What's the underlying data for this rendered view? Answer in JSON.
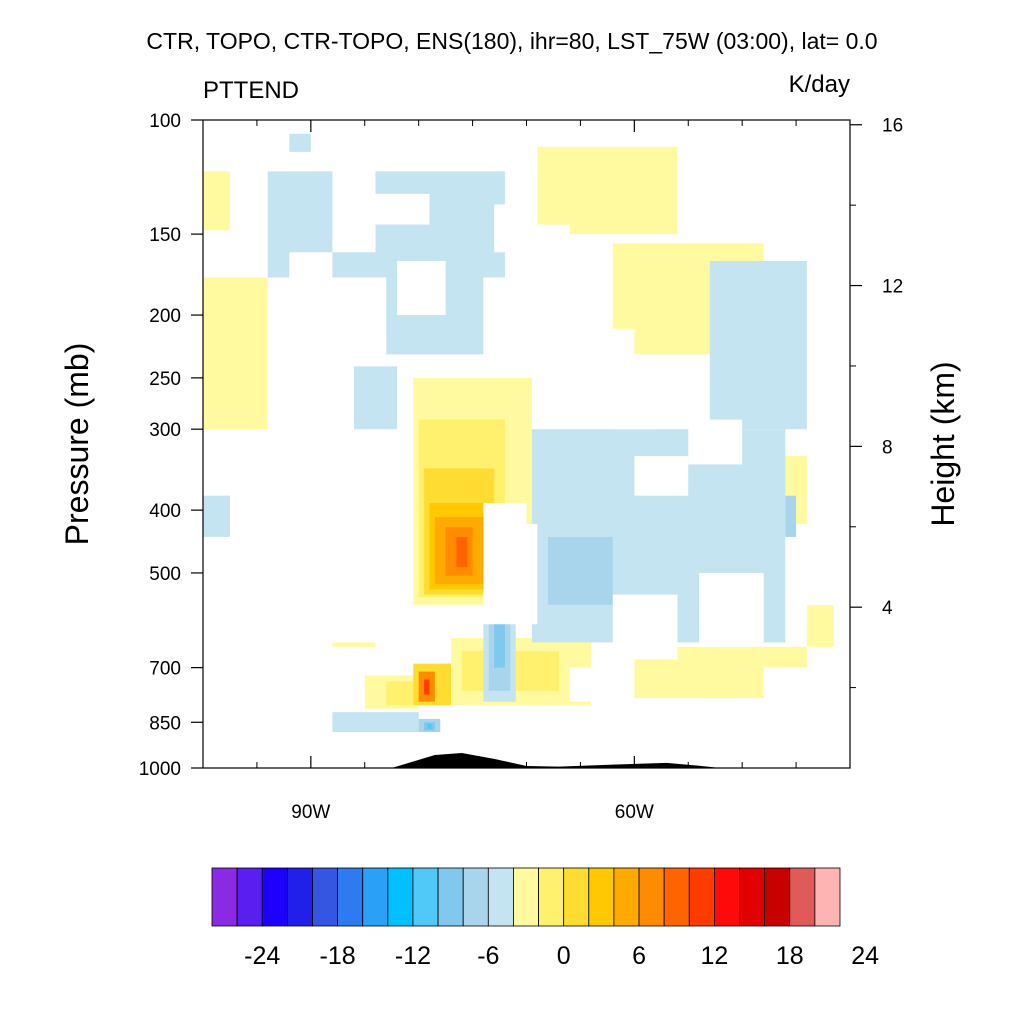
{
  "chart_data": {
    "type": "heatmap",
    "title": "CTR, TOPO, CTR-TOPO, ENS(180), ihr=80, LST_75W (03:00), lat=  0.0",
    "subtitle_left": "PTTEND",
    "units": "K/day",
    "xlabel": "",
    "ylabel": "Pressure (mb)",
    "ylabel_right": "Height (km)",
    "x_range": [
      -100,
      -40
    ],
    "x_ticks": [
      {
        "value": -90,
        "label": "90W"
      },
      {
        "value": -60,
        "label": "60W"
      }
    ],
    "y_range": [
      100,
      1000
    ],
    "y_scale": "log",
    "y_ticks": [
      {
        "value": 100,
        "label": "100"
      },
      {
        "value": 150,
        "label": "150"
      },
      {
        "value": 200,
        "label": "200"
      },
      {
        "value": 250,
        "label": "250"
      },
      {
        "value": 300,
        "label": "300"
      },
      {
        "value": 400,
        "label": "400"
      },
      {
        "value": 500,
        "label": "500"
      },
      {
        "value": 700,
        "label": "700"
      },
      {
        "value": 850,
        "label": "850"
      },
      {
        "value": 1000,
        "label": "1000"
      }
    ],
    "y_right_ticks": [
      {
        "km": 16,
        "label": "16"
      },
      {
        "km": 12,
        "label": "12"
      },
      {
        "km": 8,
        "label": "8"
      },
      {
        "km": 4,
        "label": "4"
      }
    ],
    "colorbar": {
      "colors": [
        "#8a2be2",
        "#5a1ef0",
        "#1e00ff",
        "#2020e8",
        "#3456e0",
        "#2e7af0",
        "#2aa0f6",
        "#00c0ff",
        "#50c8f8",
        "#80c8ee",
        "#a8d4ec",
        "#c4e4f2",
        "#fffaa0",
        "#fff06e",
        "#ffdc32",
        "#ffc800",
        "#ffaa00",
        "#ff8c00",
        "#ff6400",
        "#ff3c00",
        "#ff0a0a",
        "#e10000",
        "#c80000",
        "#e05a5a",
        "#ffb4b4"
      ],
      "tick_labels": [
        "-24",
        "-18",
        "-12",
        "-6",
        "0",
        "6",
        "12",
        "18",
        "24"
      ]
    },
    "topography": [
      {
        "lon": -82.5,
        "p": 1000
      },
      {
        "lon": -78.5,
        "p": 955
      },
      {
        "lon": -76,
        "p": 948
      },
      {
        "lon": -73,
        "p": 968
      },
      {
        "lon": -70,
        "p": 993
      },
      {
        "lon": -67,
        "p": 995
      },
      {
        "lon": -62,
        "p": 988
      },
      {
        "lon": -57,
        "p": 982
      },
      {
        "lon": -54,
        "p": 992
      },
      {
        "lon": -52,
        "p": 1000
      }
    ],
    "regions": [
      {
        "kind": "pos",
        "level": 0,
        "lon": [
          -100,
          -97.5
        ],
        "p": [
          120,
          148
        ]
      },
      {
        "kind": "pos",
        "level": 0,
        "lon": [
          -100,
          -94
        ],
        "p": [
          175,
          300
        ]
      },
      {
        "kind": "pos",
        "level": 0,
        "lon": [
          -83,
          -77.5
        ],
        "p": [
          142,
          168
        ]
      },
      {
        "kind": "pos",
        "level": 0,
        "lon": [
          -80.5,
          -69.5
        ],
        "p": [
          250,
          560
        ]
      },
      {
        "kind": "pos",
        "level": 0,
        "lon": [
          -77,
          -64
        ],
        "p": [
          630,
          800
        ]
      },
      {
        "kind": "pos",
        "level": 0,
        "lon": [
          -85,
          -80
        ],
        "p": [
          720,
          810
        ]
      },
      {
        "kind": "pos",
        "level": 0,
        "lon": [
          -69,
          -56
        ],
        "p": [
          110,
          150
        ]
      },
      {
        "kind": "pos",
        "level": 0,
        "lon": [
          -62,
          -48
        ],
        "p": [
          155,
          230
        ]
      },
      {
        "kind": "pos",
        "level": 0,
        "lon": [
          -52,
          -44
        ],
        "p": [
          330,
          420
        ]
      },
      {
        "kind": "pos",
        "level": 0,
        "lon": [
          -92,
          -84
        ],
        "p": [
          580,
          650
        ]
      },
      {
        "kind": "pos",
        "level": 0,
        "lon": [
          -60,
          -44
        ],
        "p": [
          650,
          780
        ]
      },
      {
        "kind": "pos",
        "level": 0,
        "lon": [
          -44,
          -41.5
        ],
        "p": [
          560,
          650
        ]
      },
      {
        "kind": "pos",
        "level": 0,
        "lon": [
          -48,
          -45
        ],
        "p": [
          245,
          285
        ]
      },
      {
        "kind": "pos",
        "level": 1,
        "lon": [
          -80,
          -72
        ],
        "p": [
          290,
          545
        ]
      },
      {
        "kind": "pos",
        "level": 1,
        "lon": [
          -76,
          -67
        ],
        "p": [
          660,
          760
        ]
      },
      {
        "kind": "pos",
        "level": 1,
        "lon": [
          -83,
          -79
        ],
        "p": [
          735,
          800
        ]
      },
      {
        "kind": "pos",
        "level": 2,
        "lon": [
          -79.5,
          -73
        ],
        "p": [
          345,
          540
        ]
      },
      {
        "kind": "pos",
        "level": 2,
        "lon": [
          -80.5,
          -77
        ],
        "p": [
          690,
          800
        ]
      },
      {
        "kind": "pos",
        "level": 3,
        "lon": [
          -79,
          -73.5
        ],
        "p": [
          390,
          530
        ]
      },
      {
        "kind": "pos",
        "level": 4,
        "lon": [
          -78.5,
          -74
        ],
        "p": [
          410,
          520
        ]
      },
      {
        "kind": "pos",
        "level": 5,
        "lon": [
          -77.5,
          -75
        ],
        "p": [
          425,
          505
        ]
      },
      {
        "kind": "pos",
        "level": 6,
        "lon": [
          -76.5,
          -75.5
        ],
        "p": [
          440,
          490
        ]
      },
      {
        "kind": "pos",
        "level": 5,
        "lon": [
          -80,
          -78.5
        ],
        "p": [
          710,
          790
        ]
      },
      {
        "kind": "pos",
        "level": 7,
        "lon": [
          -79.5,
          -79
        ],
        "p": [
          730,
          770
        ]
      },
      {
        "kind": "neg",
        "level": 0,
        "lon": [
          -94,
          -72
        ],
        "p": [
          120,
          175
        ]
      },
      {
        "kind": "neg",
        "level": 0,
        "lon": [
          -69.5,
          -46
        ],
        "p": [
          300,
          640
        ]
      },
      {
        "kind": "neg",
        "level": 0,
        "lon": [
          -83,
          -74
        ],
        "p": [
          168,
          230
        ]
      },
      {
        "kind": "neg",
        "level": 0,
        "lon": [
          -53,
          -44
        ],
        "p": [
          165,
          300
        ]
      },
      {
        "kind": "neg",
        "level": 0,
        "lon": [
          -86,
          -82
        ],
        "p": [
          240,
          330
        ]
      },
      {
        "kind": "neg",
        "level": 0,
        "lon": [
          -88,
          -80
        ],
        "p": [
          820,
          880
        ]
      },
      {
        "kind": "neg",
        "level": 0,
        "lon": [
          -74,
          -71
        ],
        "p": [
          560,
          790
        ]
      },
      {
        "kind": "neg",
        "level": 0,
        "lon": [
          -100,
          -97.5
        ],
        "p": [
          380,
          440
        ]
      },
      {
        "kind": "neg",
        "level": 0,
        "lon": [
          -92,
          -90
        ],
        "p": [
          105,
          112
        ]
      },
      {
        "kind": "neg",
        "level": 1,
        "lon": [
          -68,
          -62
        ],
        "p": [
          440,
          560
        ]
      },
      {
        "kind": "neg",
        "level": 1,
        "lon": [
          -73.5,
          -71.5
        ],
        "p": [
          570,
          760
        ]
      },
      {
        "kind": "neg",
        "level": 1,
        "lon": [
          -80,
          -78
        ],
        "p": [
          840,
          880
        ]
      },
      {
        "kind": "neg",
        "level": 1,
        "lon": [
          -46,
          -45
        ],
        "p": [
          380,
          440
        ]
      },
      {
        "kind": "neg",
        "level": 2,
        "lon": [
          -73,
          -72
        ],
        "p": [
          590,
          700
        ]
      },
      {
        "kind": "neg",
        "level": 2,
        "lon": [
          -79.5,
          -78.5
        ],
        "p": [
          850,
          875
        ]
      },
      {
        "kind": "neg",
        "level": 3,
        "lon": [
          -79.2,
          -78.8
        ],
        "p": [
          855,
          870
        ]
      }
    ],
    "masks": [
      {
        "lon": [
          -100,
          -92
        ],
        "p": [
          100,
          120
        ]
      },
      {
        "lon": [
          -88,
          -84
        ],
        "p": [
          100,
          160
        ]
      },
      {
        "lon": [
          -92,
          -88
        ],
        "p": [
          160,
          175
        ]
      },
      {
        "lon": [
          -84.5,
          -79
        ],
        "p": [
          130,
          145
        ]
      },
      {
        "lon": [
          -82,
          -77.5
        ],
        "p": [
          165,
          200
        ]
      },
      {
        "lon": [
          -73,
          -70
        ],
        "p": [
          135,
          160
        ]
      },
      {
        "lon": [
          -70,
          -66
        ],
        "p": [
          145,
          170
        ]
      },
      {
        "lon": [
          -69,
          -65
        ],
        "p": [
          170,
          210
        ]
      },
      {
        "lon": [
          -65,
          -60
        ],
        "p": [
          210,
          280
        ]
      },
      {
        "lon": [
          -62,
          -58
        ],
        "p": [
          260,
          300
        ]
      },
      {
        "lon": [
          -100,
          -93
        ],
        "p": [
          440,
          560
        ]
      },
      {
        "lon": [
          -94,
          -82
        ],
        "p": [
          410,
          640
        ]
      },
      {
        "lon": [
          -100,
          -88
        ],
        "p": [
          640,
          720
        ]
      },
      {
        "lon": [
          -90,
          -82
        ],
        "p": [
          680,
          720
        ]
      },
      {
        "lon": [
          -100,
          -91
        ],
        "p": [
          720,
          820
        ]
      },
      {
        "lon": [
          -82,
          -78
        ],
        "p": [
          590,
          690
        ]
      },
      {
        "lon": [
          -74,
          -69
        ],
        "p": [
          420,
          600
        ]
      },
      {
        "lon": [
          -77,
          -74
        ],
        "p": [
          560,
          600
        ]
      },
      {
        "lon": [
          -62,
          -56
        ],
        "p": [
          540,
          680
        ]
      },
      {
        "lon": [
          -54,
          -48
        ],
        "p": [
          500,
          640
        ]
      },
      {
        "lon": [
          -86,
          -82
        ],
        "p": [
          300,
          420
        ]
      },
      {
        "lon": [
          -74,
          -70
        ],
        "p": [
          390,
          420
        ]
      },
      {
        "lon": [
          -60,
          -55
        ],
        "p": [
          330,
          380
        ]
      },
      {
        "lon": [
          -55,
          -50
        ],
        "p": [
          290,
          340
        ]
      },
      {
        "lon": [
          -66,
          -60
        ],
        "p": [
          700,
          790
        ]
      },
      {
        "lon": [
          -56,
          -50
        ],
        "p": [
          780,
          840
        ]
      },
      {
        "lon": [
          -44,
          -40
        ],
        "p": [
          420,
          560
        ]
      },
      {
        "lon": [
          -48,
          -40
        ],
        "p": [
          700,
          840
        ]
      },
      {
        "lon": [
          -72,
          -62
        ],
        "p": [
          210,
          250
        ]
      },
      {
        "lon": [
          -90,
          -86
        ],
        "p": [
          300,
          360
        ]
      }
    ]
  }
}
